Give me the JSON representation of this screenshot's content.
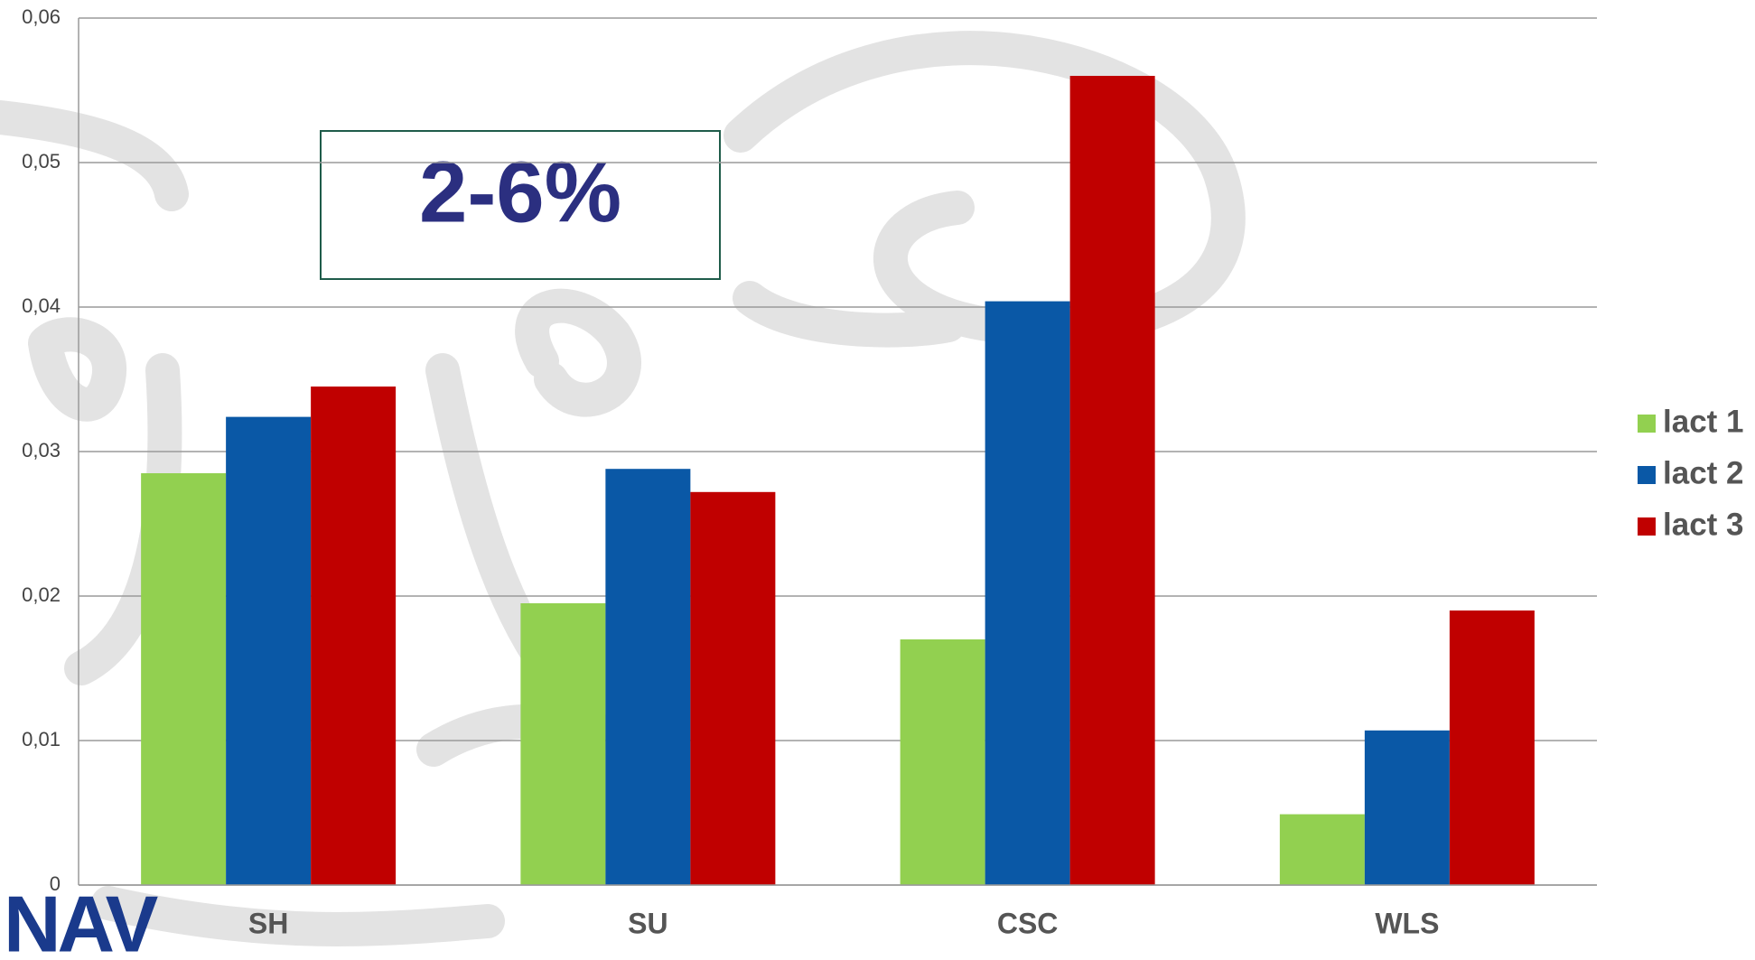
{
  "chart_data": {
    "type": "bar",
    "categories": [
      "SH",
      "SU",
      "CSC",
      "WLS"
    ],
    "series": [
      {
        "name": "lact 1",
        "color": "#92d050",
        "values": [
          0.0285,
          0.0195,
          0.017,
          0.0049
        ]
      },
      {
        "name": "lact 2",
        "color": "#0a58a6",
        "values": [
          0.0324,
          0.0288,
          0.0404,
          0.0107
        ]
      },
      {
        "name": "lact 3",
        "color": "#c00000",
        "values": [
          0.0345,
          0.0272,
          0.056,
          0.019
        ]
      }
    ],
    "ylim": [
      0,
      0.06
    ],
    "yticks": [
      0,
      {
        "value": 0.01,
        "label": "0,01"
      },
      {
        "value": 0.02,
        "label": "0,02"
      },
      {
        "value": 0.03,
        "label": "0,03"
      },
      {
        "value": 0.04,
        "label": "0,04"
      },
      {
        "value": 0.05,
        "label": "0,05"
      },
      {
        "value": 0.06,
        "label": "0,06"
      }
    ],
    "grid": true,
    "legend": "right",
    "annotation": "2-6%",
    "logo": "NAV"
  }
}
